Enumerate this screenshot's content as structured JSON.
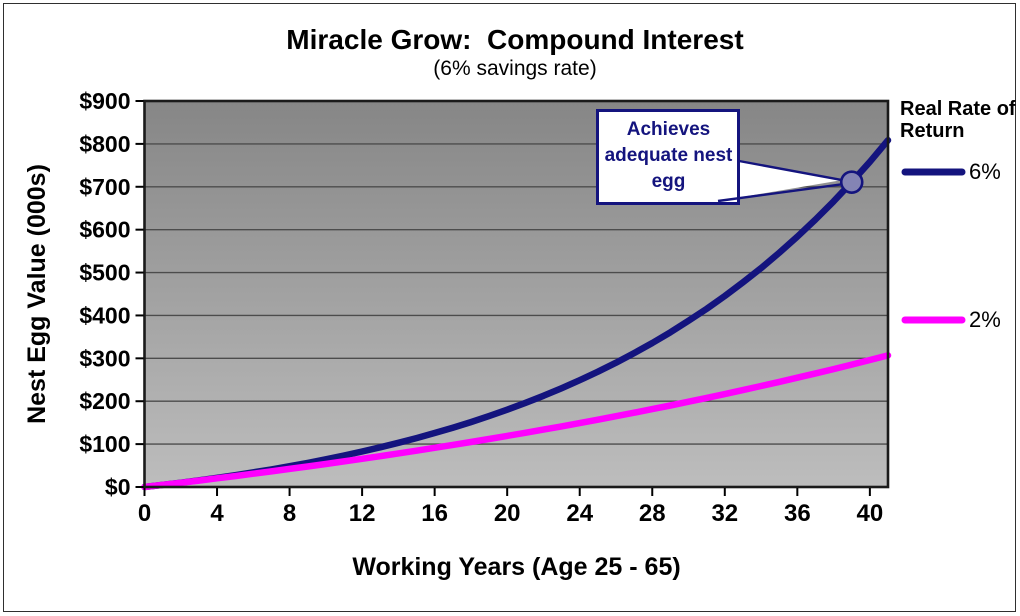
{
  "frame": {
    "border_color": "#2f2f2f",
    "background": "#ffffff"
  },
  "chart_data": {
    "type": "line",
    "title": "Miracle Grow:  Compound Interest",
    "subtitle": "(6% savings rate)",
    "xlabel": "Working Years (Age 25 - 65)",
    "ylabel": "Nest Egg Value (000s)",
    "x_ticks": [
      0,
      4,
      8,
      12,
      16,
      20,
      24,
      28,
      32,
      36,
      40
    ],
    "xlim": [
      0,
      41
    ],
    "ylim": [
      0,
      900
    ],
    "y_ticks": [
      0,
      100,
      200,
      300,
      400,
      500,
      600,
      700,
      800,
      900
    ],
    "y_tick_labels": [
      "$0",
      "$100",
      "$200",
      "$300",
      "$400",
      "$500",
      "$600",
      "$700",
      "$800",
      "$900"
    ],
    "grid": "horizontal-gridlines-on",
    "gridline_color": "#4c4c4c",
    "plot_background_top": "#868686",
    "plot_background_bottom": "#bdbdbd",
    "axis_border_color": "#1a1a1a",
    "x": [
      0,
      1,
      2,
      3,
      4,
      5,
      6,
      7,
      8,
      9,
      10,
      11,
      12,
      13,
      14,
      15,
      16,
      17,
      18,
      19,
      20,
      21,
      22,
      23,
      24,
      25,
      26,
      27,
      28,
      29,
      30,
      31,
      32,
      33,
      34,
      35,
      36,
      37,
      38,
      39,
      40,
      41
    ],
    "series": [
      {
        "name": "6%",
        "color": "#14147E",
        "values": [
          0,
          4.9,
          10.1,
          15.6,
          21.4,
          27.6,
          34.2,
          41.1,
          48.5,
          56.3,
          64.6,
          73.4,
          82.7,
          92.5,
          103.0,
          114.0,
          125.8,
          138.2,
          151.4,
          165.4,
          180.3,
          196.0,
          212.6,
          230.3,
          249.0,
          268.8,
          289.9,
          312.2,
          335.8,
          360.8,
          387.4,
          415.5,
          445.4,
          477.0,
          510.5,
          546.0,
          583.7,
          623.6,
          665.9,
          710.8,
          758.3,
          808.7
        ]
      },
      {
        "name": "2%",
        "color": "#FF00FF",
        "values": [
          0,
          4.9,
          9.9,
          15.0,
          20.2,
          25.5,
          30.9,
          36.4,
          42.1,
          47.8,
          53.7,
          59.6,
          65.7,
          71.9,
          78.3,
          84.7,
          91.3,
          98.1,
          104.9,
          111.9,
          119.1,
          126.3,
          133.8,
          141.3,
          149.1,
          156.9,
          165.0,
          173.2,
          181.6,
          190.1,
          198.8,
          207.7,
          216.7,
          226.0,
          235.4,
          245.0,
          254.8,
          264.8,
          275.0,
          285.4,
          296.0,
          306.8
        ]
      }
    ],
    "legend": {
      "title": "Real Rate of Return",
      "position": "right",
      "entries": [
        "6%",
        "2%"
      ]
    },
    "annotation": {
      "text": "Achieves adequate nest egg",
      "text_color": "#14147E",
      "series": "6%",
      "year": 39,
      "value": 710.8,
      "marker_fill": "#8484B4",
      "marker_stroke": "#14147E",
      "callout_fill": "#FFFFFF",
      "callout_border": "#14147E"
    }
  }
}
